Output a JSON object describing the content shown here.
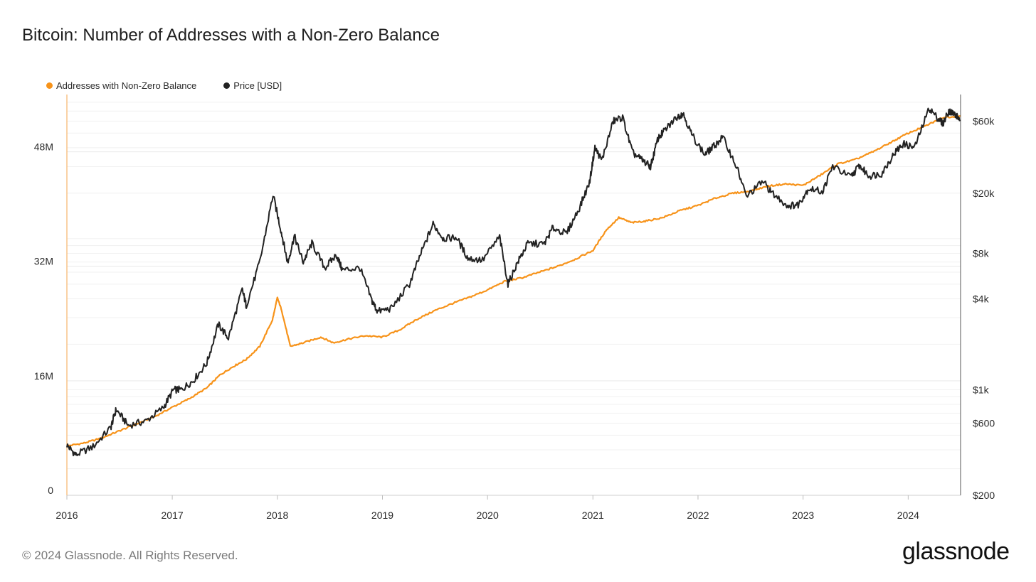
{
  "header": {
    "title": "Bitcoin: Number of Addresses with a Non-Zero Balance"
  },
  "footer": {
    "copyright": "© 2024 Glassnode. All Rights Reserved.",
    "brand": "glassnode"
  },
  "chart_data": {
    "type": "line",
    "title": "Bitcoin: Number of Addresses with a Non-Zero Balance",
    "legend": {
      "placement": "top-left",
      "items": [
        {
          "label": "Addresses with Non-Zero Balance",
          "color": "#f7931a"
        },
        {
          "label": "Price [USD]",
          "color": "#222222"
        }
      ]
    },
    "grid": true,
    "x_axis": {
      "type": "time",
      "range": [
        "2016-01-01",
        "2024-07-01"
      ],
      "tick_labels": [
        "2016",
        "2017",
        "2018",
        "2019",
        "2020",
        "2021",
        "2022",
        "2023",
        "2024"
      ]
    },
    "y_left": {
      "range": [
        0,
        56000000
      ],
      "ticks": [
        0,
        16000000,
        32000000,
        48000000
      ],
      "tick_labels": [
        "0",
        "16M",
        "32M",
        "48M"
      ]
    },
    "y_right": {
      "scale": "log",
      "range": [
        200,
        90000
      ],
      "ticks": [
        200,
        600,
        1000,
        4000,
        8000,
        20000,
        60000
      ],
      "tick_labels": [
        "$200",
        "$600",
        "$1k",
        "$4k",
        "$8k",
        "$20k",
        "$60k"
      ]
    },
    "series": [
      {
        "name": "Addresses with Non-Zero Balance",
        "axis": "left",
        "color": "#f7931a",
        "x": [
          "2016-01-01",
          "2016-03-01",
          "2016-05-01",
          "2016-07-01",
          "2016-09-01",
          "2016-11-01",
          "2017-01-01",
          "2017-03-01",
          "2017-05-01",
          "2017-06-15",
          "2017-08-01",
          "2017-09-15",
          "2017-11-01",
          "2017-12-15",
          "2018-01-01",
          "2018-01-15",
          "2018-02-15",
          "2018-04-01",
          "2018-06-01",
          "2018-07-15",
          "2018-09-01",
          "2018-11-01",
          "2019-01-01",
          "2019-03-01",
          "2019-05-01",
          "2019-07-01",
          "2019-09-01",
          "2019-11-01",
          "2020-01-01",
          "2020-03-01",
          "2020-05-01",
          "2020-07-01",
          "2020-09-01",
          "2020-11-01",
          "2021-01-01",
          "2021-02-15",
          "2021-04-01",
          "2021-05-15",
          "2021-07-01",
          "2021-09-01",
          "2021-11-01",
          "2022-01-01",
          "2022-03-01",
          "2022-05-01",
          "2022-07-01",
          "2022-09-01",
          "2022-11-01",
          "2023-01-01",
          "2023-03-01",
          "2023-05-01",
          "2023-07-01",
          "2023-09-01",
          "2023-11-01",
          "2024-01-01",
          "2024-03-01",
          "2024-05-01",
          "2024-06-30"
        ],
        "values": [
          6900000,
          7300000,
          8000000,
          9000000,
          10000000,
          11000000,
          12300000,
          13500000,
          15000000,
          16800000,
          18000000,
          19000000,
          20800000,
          24500000,
          27600000,
          26000000,
          20800000,
          21300000,
          22100000,
          21300000,
          21800000,
          22300000,
          22100000,
          23100000,
          24600000,
          25800000,
          26800000,
          27700000,
          28700000,
          29900000,
          30400000,
          31200000,
          32000000,
          33000000,
          34200000,
          37000000,
          38800000,
          38100000,
          38300000,
          38800000,
          39800000,
          40500000,
          41500000,
          42200000,
          42500000,
          43200000,
          43500000,
          43300000,
          44700000,
          46300000,
          46900000,
          48000000,
          49300000,
          50600000,
          51600000,
          52800000,
          53000000
        ]
      },
      {
        "name": "Price [USD]",
        "axis": "right",
        "color": "#222222",
        "x": [
          "2016-01-01",
          "2016-02-01",
          "2016-04-01",
          "2016-06-01",
          "2016-06-20",
          "2016-08-01",
          "2016-10-01",
          "2016-12-01",
          "2017-01-05",
          "2017-02-01",
          "2017-03-15",
          "2017-05-01",
          "2017-06-10",
          "2017-07-15",
          "2017-09-01",
          "2017-09-15",
          "2017-11-01",
          "2017-12-17",
          "2018-01-15",
          "2018-02-06",
          "2018-03-01",
          "2018-04-01",
          "2018-05-01",
          "2018-06-15",
          "2018-07-25",
          "2018-08-15",
          "2018-10-15",
          "2018-11-25",
          "2018-12-15",
          "2019-02-01",
          "2019-04-05",
          "2019-05-15",
          "2019-06-26",
          "2019-08-01",
          "2019-09-15",
          "2019-10-25",
          "2019-12-15",
          "2020-02-12",
          "2020-03-12",
          "2020-04-15",
          "2020-05-20",
          "2020-07-15",
          "2020-08-15",
          "2020-10-01",
          "2020-11-15",
          "2020-12-20",
          "2021-01-08",
          "2021-02-01",
          "2021-03-13",
          "2021-04-14",
          "2021-05-19",
          "2021-06-22",
          "2021-07-20",
          "2021-08-15",
          "2021-09-07",
          "2021-10-20",
          "2021-11-10",
          "2021-12-10",
          "2022-01-24",
          "2022-02-20",
          "2022-03-28",
          "2022-05-15",
          "2022-06-18",
          "2022-08-15",
          "2022-09-15",
          "2022-11-09",
          "2022-12-15",
          "2023-01-20",
          "2023-03-10",
          "2023-04-14",
          "2023-06-15",
          "2023-07-15",
          "2023-08-18",
          "2023-10-01",
          "2023-11-15",
          "2023-12-15",
          "2024-01-23",
          "2024-03-14",
          "2024-04-15",
          "2024-05-01",
          "2024-05-21",
          "2024-06-10",
          "2024-06-30"
        ],
        "values": [
          430,
          370,
          420,
          560,
          740,
          580,
          620,
          760,
          1000,
          1000,
          1150,
          1500,
          2700,
          2200,
          4600,
          3600,
          7000,
          19500,
          11000,
          6900,
          10400,
          7000,
          9300,
          6400,
          7800,
          6200,
          6400,
          3900,
          3300,
          3450,
          5000,
          8000,
          12500,
          10000,
          10200,
          7400,
          7200,
          10300,
          5000,
          7000,
          9300,
          9200,
          11800,
          10800,
          16000,
          23500,
          40000,
          33000,
          60000,
          63500,
          37000,
          33000,
          30000,
          46000,
          52000,
          64000,
          67500,
          49000,
          36000,
          40000,
          47000,
          30000,
          19000,
          24000,
          20000,
          16500,
          16800,
          21500,
          20500,
          30200,
          25500,
          30500,
          26000,
          27000,
          37000,
          42500,
          40000,
          73000,
          62000,
          58000,
          70000,
          67000,
          61000
        ]
      }
    ]
  }
}
